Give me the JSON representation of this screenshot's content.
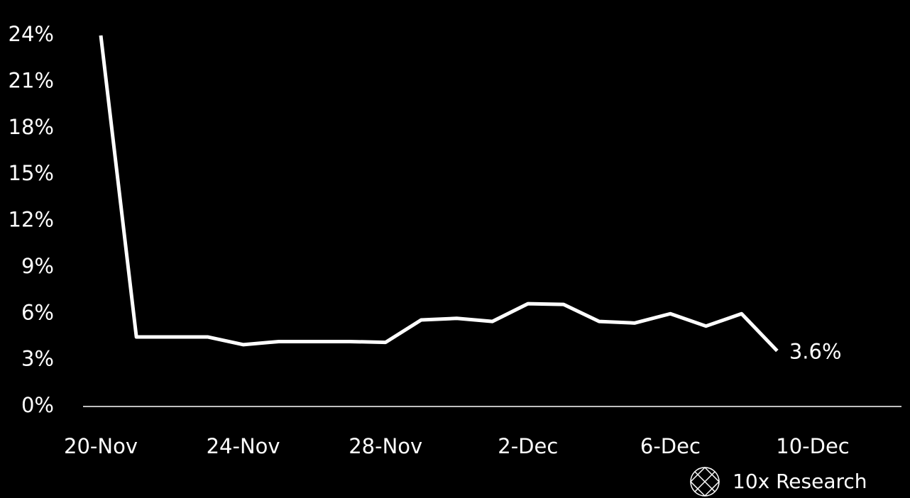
{
  "chart_data": {
    "type": "line",
    "categories": [
      "20-Nov",
      null,
      null,
      null,
      "24-Nov",
      null,
      null,
      null,
      "28-Nov",
      null,
      null,
      null,
      "2-Dec",
      null,
      null,
      null,
      "6-Dec",
      null,
      null,
      null,
      "10-Dec"
    ],
    "series": [
      {
        "color": "#ffffff",
        "values": [
          24,
          4.5,
          4.5,
          4.5,
          4.0,
          4.2,
          4.2,
          4.2,
          4.15,
          5.6,
          5.7,
          5.5,
          6.65,
          6.6,
          5.5,
          5.4,
          6.0,
          5.2,
          6.0,
          3.6,
          null
        ],
        "value_labels": [
          null,
          null,
          null,
          null,
          null,
          null,
          null,
          null,
          null,
          null,
          null,
          null,
          null,
          null,
          null,
          null,
          null,
          null,
          null,
          "3.6%",
          null
        ]
      }
    ],
    "ylim": [
      0,
      24
    ],
    "yticks": [
      {
        "value": 0,
        "label": "0%"
      },
      {
        "value": 3,
        "label": "3%"
      },
      {
        "value": 6,
        "label": "6%"
      },
      {
        "value": 9,
        "label": "9%"
      },
      {
        "value": 12,
        "label": "12%"
      },
      {
        "value": 15,
        "label": "15%"
      },
      {
        "value": 18,
        "label": "18%"
      },
      {
        "value": 21,
        "label": "21%"
      },
      {
        "value": 24,
        "label": "24%"
      }
    ],
    "watermark": "10x Research"
  }
}
